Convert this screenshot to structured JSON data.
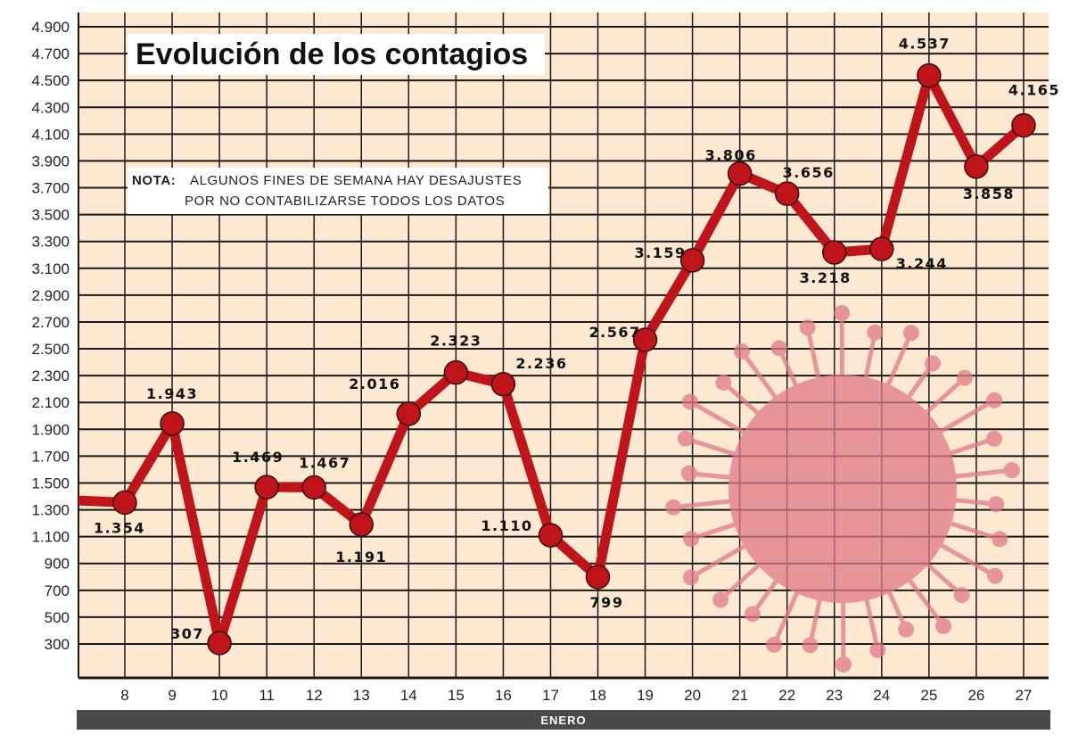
{
  "chart_data": {
    "type": "line",
    "title": "Evolución de los contagios",
    "note_label": "NOTA:",
    "note_lines": [
      "ALGUNOS FINES DE SEMANA HAY DESAJUSTES",
      "POR NO CONTABILIZARSE TODOS LOS DATOS"
    ],
    "xlabel": "ENERO",
    "ylabel": "",
    "x": [
      7,
      8,
      9,
      10,
      11,
      12,
      13,
      14,
      15,
      16,
      17,
      18,
      19,
      20,
      21,
      22,
      23,
      24,
      25,
      26,
      27
    ],
    "values": [
      1370,
      1354,
      1943,
      307,
      1469,
      1467,
      1191,
      2016,
      2323,
      2236,
      1110,
      799,
      2567,
      3159,
      3806,
      3656,
      3218,
      3244,
      4537,
      3858,
      4165
    ],
    "data_labels": [
      null,
      "1.354",
      "1.943",
      "307",
      "1.469",
      "1.467",
      "1.191",
      "2.016",
      "2.323",
      "2.236",
      "1.110",
      "799",
      "2.567",
      "3.159",
      "3.806",
      "3.656",
      "3.218",
      "3.244",
      "4.537",
      "3.858",
      "4.165"
    ],
    "x_tick_labels": [
      "8",
      "9",
      "10",
      "11",
      "12",
      "13",
      "14",
      "15",
      "16",
      "17",
      "18",
      "19",
      "20",
      "21",
      "22",
      "23",
      "24",
      "25",
      "26",
      "27"
    ],
    "y_tick_labels": [
      "4.900",
      "4.700",
      "4.500",
      "4.300",
      "4.100",
      "3.900",
      "3.700",
      "3.500",
      "3.300",
      "3.100",
      "2.900",
      "2.700",
      "2.500",
      "2.300",
      "2.100",
      "1.900",
      "1.700",
      "1.500",
      "1.300",
      "1.100",
      "900",
      "700",
      "500",
      "300"
    ],
    "ylim": [
      300,
      4900
    ],
    "xlim": [
      7,
      27
    ],
    "grid": true,
    "legend": "none",
    "colors": {
      "line": "#c0141b",
      "background": "#fde8d2",
      "grid": "#1a1a1a",
      "month_bar": "#4a4a4a",
      "virus": "#e07a86"
    },
    "decoration": "coronavirus-illustration"
  }
}
